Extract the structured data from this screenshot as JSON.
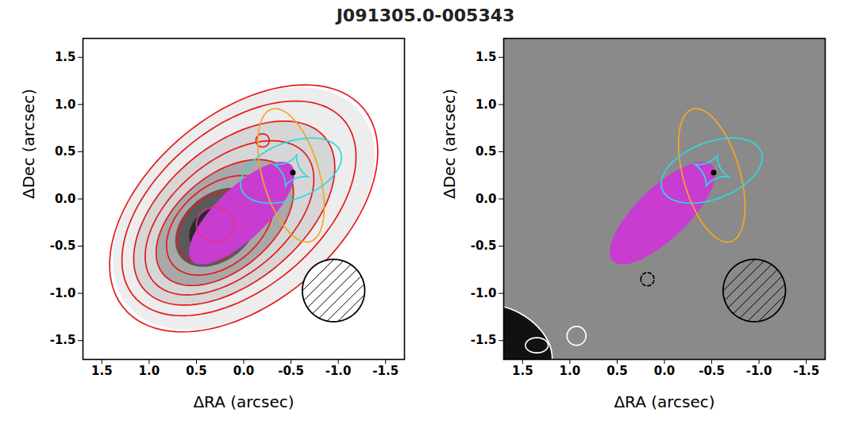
{
  "title": "J091305.0-005343",
  "chart_data": [
    {
      "type": "image",
      "x_label": "ΔRA (arcsec)",
      "y_label": "ΔDec (arcsec)",
      "xlim": [
        1.7,
        -1.7
      ],
      "ylim": [
        -1.7,
        1.7
      ],
      "xticks": [
        1.5,
        {
          "value": 1,
          "label": "1.0"
        },
        0.5,
        {
          "value": 0,
          "label": "0.0"
        },
        -0.5,
        {
          "value": -1,
          "label": "-1.0"
        },
        -1.5
      ],
      "yticks": [
        -1.5,
        {
          "value": -1,
          "label": "-1.0"
        },
        -0.5,
        {
          "value": 0,
          "label": "0.0"
        },
        0.5,
        {
          "value": 1,
          "label": "1.0"
        },
        1.5
      ],
      "background": "#ffffff",
      "shapes": [
        {
          "type": "filled_ellipse",
          "color": "#ededed",
          "cx": 0.0,
          "cy": -0.1,
          "a": 1.6,
          "b": 1.0,
          "angle": 140
        },
        {
          "type": "filled_ellipse",
          "color": "#d6d6d6",
          "cx": 0.1,
          "cy": -0.15,
          "a": 1.25,
          "b": 0.72,
          "angle": 140
        },
        {
          "type": "filled_ellipse",
          "color": "#a8a8a8",
          "cx": 0.2,
          "cy": -0.25,
          "a": 0.85,
          "b": 0.5,
          "angle": 140
        },
        {
          "type": "filled_ellipse",
          "color": "#5a5a5a",
          "cx": 0.28,
          "cy": -0.3,
          "a": 0.5,
          "b": 0.35,
          "angle": 140
        },
        {
          "type": "filled_ellipse",
          "color": "#2a2a2a",
          "cx": 0.32,
          "cy": -0.33,
          "a": 0.28,
          "b": 0.22,
          "angle": 140
        },
        {
          "type": "ellipse",
          "color": "#e41a1c",
          "line_style": "solid",
          "cx": 0.0,
          "cy": -0.1,
          "a": 1.65,
          "b": 1.0,
          "angle": 140
        },
        {
          "type": "ellipse",
          "color": "#e41a1c",
          "line_style": "solid",
          "cx": 0.05,
          "cy": -0.1,
          "a": 1.45,
          "b": 0.85,
          "angle": 140
        },
        {
          "type": "ellipse",
          "color": "#e41a1c",
          "line_style": "solid",
          "cx": 0.1,
          "cy": -0.15,
          "a": 1.25,
          "b": 0.72,
          "angle": 140
        },
        {
          "type": "ellipse",
          "color": "#e41a1c",
          "line_style": "solid",
          "cx": 0.15,
          "cy": -0.2,
          "a": 1.05,
          "b": 0.6,
          "angle": 140
        },
        {
          "type": "ellipse",
          "color": "#e41a1c",
          "line_style": "solid",
          "cx": 0.2,
          "cy": -0.25,
          "a": 0.85,
          "b": 0.5,
          "angle": 140
        },
        {
          "type": "ellipse",
          "color": "#e41a1c",
          "line_style": "solid",
          "cx": 0.25,
          "cy": -0.28,
          "a": 0.65,
          "b": 0.42,
          "angle": 140
        },
        {
          "type": "ellipse",
          "color": "#e41a1c",
          "line_style": "solid",
          "cx": 0.3,
          "cy": -0.3,
          "a": 0.45,
          "b": 0.32,
          "angle": 140
        },
        {
          "type": "ellipse",
          "color": "#e41a1c",
          "line_style": "solid",
          "cx": -0.2,
          "cy": 0.62,
          "a": 0.07,
          "b": 0.07,
          "angle": 0
        },
        {
          "type": "filled_ellipse",
          "color": "#c83cd0",
          "cx": 0.02,
          "cy": -0.15,
          "a": 0.73,
          "b": 0.27,
          "angle": 136
        },
        {
          "type": "ellipse",
          "color": "#e6308c",
          "line_style": "solid",
          "cx": 0.3,
          "cy": -0.27,
          "a": 0.2,
          "b": 0.18,
          "angle": 0
        },
        {
          "type": "ellipse",
          "color": "#f5a623",
          "line_style": "solid",
          "cx": -0.5,
          "cy": 0.25,
          "a": 0.73,
          "b": 0.3,
          "angle": 74
        },
        {
          "type": "ellipse",
          "color": "#2fd8e0",
          "line_style": "solid",
          "cx": -0.5,
          "cy": 0.3,
          "a": 0.56,
          "b": 0.3,
          "angle": 159
        },
        {
          "type": "caustic",
          "color": "#2fd8e0",
          "cx": -0.5,
          "cy": 0.3,
          "a": 0.2,
          "b": 0.18,
          "angle": 20
        },
        {
          "type": "point",
          "color": "#000000",
          "cx": -0.52,
          "cy": 0.28
        },
        {
          "type": "beam",
          "color": "#000000",
          "cx": -0.95,
          "cy": -0.97,
          "a": 0.33,
          "b": 0.33,
          "angle": 0
        }
      ]
    },
    {
      "type": "image",
      "x_label": "ΔRA (arcsec)",
      "y_label": "ΔDec (arcsec)",
      "xlim": [
        1.7,
        -1.7
      ],
      "ylim": [
        -1.7,
        1.7
      ],
      "xticks": [
        1.5,
        {
          "value": 1,
          "label": "1.0"
        },
        0.5,
        {
          "value": 0,
          "label": "0.0"
        },
        -0.5,
        {
          "value": -1,
          "label": "-1.0"
        },
        -1.5
      ],
      "yticks": [
        -1.5,
        {
          "value": -1,
          "label": "-1.0"
        },
        -0.5,
        {
          "value": 0,
          "label": "0.0"
        },
        0.5,
        {
          "value": 1,
          "label": "1.0"
        },
        1.5
      ],
      "background": "#8a8a8a",
      "shapes": [
        {
          "type": "filled_ellipse",
          "color": "#111111",
          "cx": 1.75,
          "cy": -1.6,
          "a": 0.6,
          "b": 0.45,
          "angle": 30
        },
        {
          "type": "ellipse",
          "color": "#ffffff",
          "line_style": "solid",
          "cx": 1.7,
          "cy": -1.55,
          "a": 0.55,
          "b": 0.38,
          "angle": 30
        },
        {
          "type": "ellipse",
          "color": "#ffffff",
          "line_style": "solid",
          "cx": 0.93,
          "cy": -1.45,
          "a": 0.1,
          "b": 0.1,
          "angle": 0
        },
        {
          "type": "ellipse",
          "color": "#ffffff",
          "line_style": "solid",
          "cx": 1.35,
          "cy": -1.55,
          "a": 0.12,
          "b": 0.08,
          "angle": 0
        },
        {
          "type": "ellipse",
          "color": "#000000",
          "line_style": "dashed",
          "cx": 0.18,
          "cy": -0.85,
          "a": 0.07,
          "b": 0.07,
          "angle": 0
        },
        {
          "type": "filled_ellipse",
          "color": "#c83cd0",
          "cx": 0.02,
          "cy": -0.15,
          "a": 0.73,
          "b": 0.27,
          "angle": 136
        },
        {
          "type": "ellipse",
          "color": "#f5a623",
          "line_style": "solid",
          "cx": -0.5,
          "cy": 0.25,
          "a": 0.73,
          "b": 0.3,
          "angle": 74
        },
        {
          "type": "ellipse",
          "color": "#2fd8e0",
          "line_style": "solid",
          "cx": -0.5,
          "cy": 0.3,
          "a": 0.56,
          "b": 0.3,
          "angle": 159
        },
        {
          "type": "caustic",
          "color": "#2fd8e0",
          "cx": -0.5,
          "cy": 0.3,
          "a": 0.2,
          "b": 0.18,
          "angle": 20
        },
        {
          "type": "point",
          "color": "#000000",
          "cx": -0.52,
          "cy": 0.28
        },
        {
          "type": "beam",
          "color": "#000000",
          "cx": -0.95,
          "cy": -0.97,
          "a": 0.33,
          "b": 0.33,
          "angle": 0
        }
      ]
    }
  ]
}
